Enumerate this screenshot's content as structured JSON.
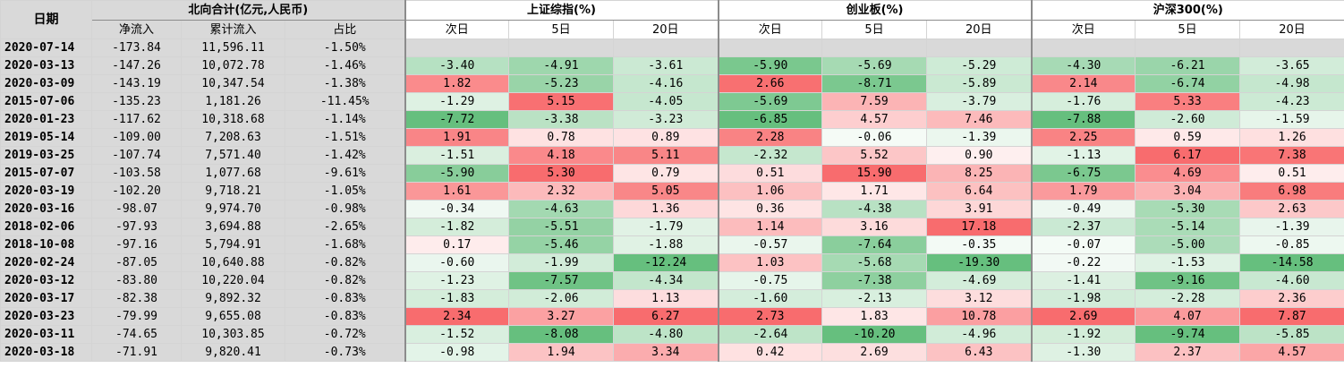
{
  "headers": {
    "date": "日期",
    "north": "北向合计(亿元,人民币)",
    "north_cols": [
      "净流入",
      "累计流入",
      "占比"
    ],
    "index_groups": [
      "上证综指(%)",
      "创业板(%)",
      "沪深300(%)"
    ],
    "period_cols": [
      "次日",
      "5日",
      "20日"
    ]
  },
  "rows": [
    {
      "date": "2020-07-14",
      "net": "-173.84",
      "cum": "11,596.11",
      "pct": "-1.50%",
      "v": [
        "",
        "",
        "",
        "",
        "",
        "",
        "",
        "",
        ""
      ]
    },
    {
      "date": "2020-03-13",
      "net": "-147.26",
      "cum": "10,072.78",
      "pct": "-1.46%",
      "v": [
        "-3.40",
        "-4.91",
        "-3.61",
        "-5.90",
        "-5.69",
        "-5.29",
        "-4.30",
        "-6.21",
        "-3.65"
      ]
    },
    {
      "date": "2020-03-09",
      "net": "-143.19",
      "cum": "10,347.54",
      "pct": "-1.38%",
      "v": [
        "1.82",
        "-5.23",
        "-4.16",
        "2.66",
        "-8.71",
        "-5.89",
        "2.14",
        "-6.74",
        "-4.98"
      ]
    },
    {
      "date": "2015-07-06",
      "net": "-135.23",
      "cum": "1,181.26",
      "pct": "-11.45%",
      "v": [
        "-1.29",
        "5.15",
        "-4.05",
        "-5.69",
        "7.59",
        "-3.79",
        "-1.76",
        "5.33",
        "-4.23"
      ]
    },
    {
      "date": "2020-01-23",
      "net": "-117.62",
      "cum": "10,318.68",
      "pct": "-1.14%",
      "v": [
        "-7.72",
        "-3.38",
        "-3.23",
        "-6.85",
        "4.57",
        "7.46",
        "-7.88",
        "-2.60",
        "-1.59"
      ]
    },
    {
      "date": "2019-05-14",
      "net": "-109.00",
      "cum": "7,208.63",
      "pct": "-1.51%",
      "v": [
        "1.91",
        "0.78",
        "0.89",
        "2.28",
        "-0.06",
        "-1.39",
        "2.25",
        "0.59",
        "1.26"
      ]
    },
    {
      "date": "2019-03-25",
      "net": "-107.74",
      "cum": "7,571.40",
      "pct": "-1.42%",
      "v": [
        "-1.51",
        "4.18",
        "5.11",
        "-2.32",
        "5.52",
        "0.90",
        "-1.13",
        "6.17",
        "7.38"
      ]
    },
    {
      "date": "2015-07-07",
      "net": "-103.58",
      "cum": "1,077.68",
      "pct": "-9.61%",
      "v": [
        "-5.90",
        "5.30",
        "0.79",
        "0.51",
        "15.90",
        "8.25",
        "-6.75",
        "4.69",
        "0.51"
      ]
    },
    {
      "date": "2020-03-19",
      "net": "-102.20",
      "cum": "9,718.21",
      "pct": "-1.05%",
      "v": [
        "1.61",
        "2.32",
        "5.05",
        "1.06",
        "1.71",
        "6.64",
        "1.79",
        "3.04",
        "6.98"
      ]
    },
    {
      "date": "2020-03-16",
      "net": "-98.07",
      "cum": "9,974.70",
      "pct": "-0.98%",
      "v": [
        "-0.34",
        "-4.63",
        "1.36",
        "0.36",
        "-4.38",
        "3.91",
        "-0.49",
        "-5.30",
        "2.63"
      ]
    },
    {
      "date": "2018-02-06",
      "net": "-97.93",
      "cum": "3,694.88",
      "pct": "-2.65%",
      "v": [
        "-1.82",
        "-5.51",
        "-1.79",
        "1.14",
        "3.16",
        "17.18",
        "-2.37",
        "-5.14",
        "-1.39"
      ]
    },
    {
      "date": "2018-10-08",
      "net": "-97.16",
      "cum": "5,794.91",
      "pct": "-1.68%",
      "v": [
        "0.17",
        "-5.46",
        "-1.88",
        "-0.57",
        "-7.64",
        "-0.35",
        "-0.07",
        "-5.00",
        "-0.85"
      ]
    },
    {
      "date": "2020-02-24",
      "net": "-87.05",
      "cum": "10,640.88",
      "pct": "-0.82%",
      "v": [
        "-0.60",
        "-1.99",
        "-12.24",
        "1.03",
        "-5.68",
        "-19.30",
        "-0.22",
        "-1.53",
        "-14.58"
      ]
    },
    {
      "date": "2020-03-12",
      "net": "-83.80",
      "cum": "10,220.04",
      "pct": "-0.82%",
      "v": [
        "-1.23",
        "-7.57",
        "-4.34",
        "-0.75",
        "-7.38",
        "-4.69",
        "-1.41",
        "-9.16",
        "-4.60"
      ]
    },
    {
      "date": "2020-03-17",
      "net": "-82.38",
      "cum": "9,892.32",
      "pct": "-0.83%",
      "v": [
        "-1.83",
        "-2.06",
        "1.13",
        "-1.60",
        "-2.13",
        "3.12",
        "-1.98",
        "-2.28",
        "2.36"
      ]
    },
    {
      "date": "2020-03-23",
      "net": "-79.99",
      "cum": "9,655.08",
      "pct": "-0.83%",
      "v": [
        "2.34",
        "3.27",
        "6.27",
        "2.73",
        "1.83",
        "10.78",
        "2.69",
        "4.07",
        "7.87"
      ]
    },
    {
      "date": "2020-03-11",
      "net": "-74.65",
      "cum": "10,303.85",
      "pct": "-0.72%",
      "v": [
        "-1.52",
        "-8.08",
        "-4.80",
        "-2.64",
        "-10.20",
        "-4.96",
        "-1.92",
        "-9.74",
        "-5.85"
      ]
    },
    {
      "date": "2020-03-18",
      "net": "-71.91",
      "cum": "9,820.41",
      "pct": "-0.73%",
      "v": [
        "-0.98",
        "1.94",
        "3.34",
        "0.42",
        "2.69",
        "6.43",
        "-1.30",
        "2.37",
        "4.57"
      ]
    }
  ],
  "colors": {
    "neutral": "#ffffff",
    "positive_max": "#f8696b",
    "negative_max": "#63be7b",
    "left_grey": "#d9d9d9",
    "first_row_grey": "#d9d9d9"
  }
}
